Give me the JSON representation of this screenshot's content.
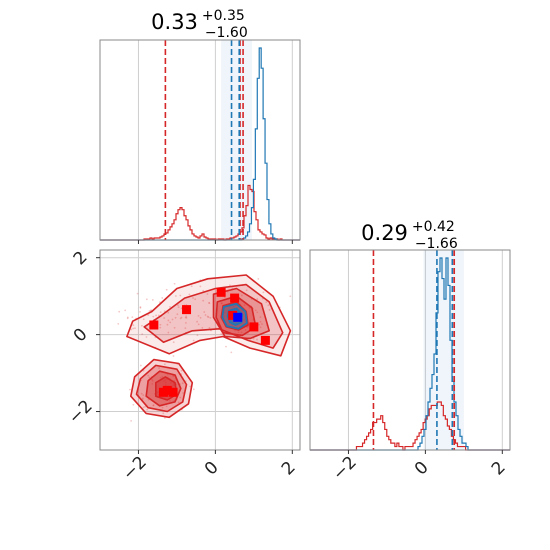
{
  "colors": {
    "red": "#d62728",
    "blue": "#1f77b4",
    "marker_red": "#ff0000",
    "marker_blue": "#0000ff",
    "grid": "#cfcfcf",
    "frame": "#8a8a8a"
  },
  "panels": {
    "top": {
      "title": {
        "value": "0.33",
        "plus": "+0.35",
        "minus": "−1.60"
      }
    },
    "right": {
      "title": {
        "value": "0.29",
        "plus": "+0.42",
        "minus": "−1.66"
      }
    }
  },
  "chart_data": {
    "type": "corner",
    "parameters": [
      "p1",
      "p2"
    ],
    "range": [
      -3,
      2.2
    ],
    "ticks": [
      -2,
      0,
      2
    ],
    "tick_labels": [
      "−2",
      "0",
      "2"
    ],
    "grid": true,
    "marginals": {
      "p1": {
        "summary": {
          "median": 0.33,
          "plus": 0.35,
          "minus": 1.6
        },
        "red_hist": [
          0,
          0,
          0,
          0,
          0,
          0,
          0,
          0,
          0,
          0,
          0,
          0,
          0,
          0,
          0,
          0,
          0,
          0,
          0,
          0,
          0,
          0,
          0.5,
          0.5,
          0.5,
          1,
          0.5,
          1,
          1,
          1,
          1.5,
          2,
          3,
          3.5,
          5,
          6.5,
          8,
          10,
          13,
          15,
          16,
          15,
          12,
          10,
          7,
          5,
          3,
          2,
          1.5,
          1,
          2,
          3,
          1.5,
          1,
          0.5,
          0.5,
          0.5,
          0.5,
          0,
          0.5,
          0.5,
          0.5,
          0,
          0.5,
          0.5,
          1,
          1,
          1.5,
          2,
          3,
          4,
          6,
          12,
          17,
          27,
          25,
          24,
          14,
          10,
          5,
          4,
          3,
          2.5,
          1,
          0.5,
          1,
          0.5,
          0.5,
          0.5,
          0,
          0.5,
          0,
          0,
          0,
          0,
          0,
          0,
          0,
          0,
          0
        ],
        "blue_hist": [
          0,
          0,
          0,
          0,
          0,
          0,
          0,
          0,
          0,
          0,
          0,
          0,
          0,
          0,
          0,
          0,
          0,
          0,
          0,
          0,
          0,
          0,
          0,
          0,
          0,
          0,
          0,
          0,
          0,
          0,
          0,
          0,
          0,
          0,
          0,
          0,
          0,
          0,
          0,
          0,
          0,
          0,
          0,
          0,
          0,
          0,
          0,
          0,
          0,
          0,
          0,
          0,
          0,
          0,
          0,
          0,
          0,
          0,
          0,
          0,
          0,
          0,
          0,
          0,
          0,
          0,
          0,
          0,
          0,
          0,
          0,
          0,
          0,
          0.5,
          1,
          2,
          4,
          8,
          16,
          30,
          55,
          80,
          95,
          85,
          60,
          38,
          20,
          8,
          3,
          1,
          0.5,
          0,
          0,
          0,
          0,
          0,
          0,
          0,
          0,
          0,
          0,
          0,
          0
        ],
        "red_lines": [
          -1.3,
          0.64,
          0.72
        ],
        "blue_lines": [
          0.42,
          0.62
        ],
        "blue_shade": [
          0.15,
          0.95
        ]
      },
      "p2": {
        "summary": {
          "median": 0.29,
          "plus": 0.42,
          "minus": 1.66
        },
        "red_hist": [
          0,
          0,
          0,
          0,
          0,
          0,
          0,
          0,
          0,
          0,
          0,
          0,
          0,
          0,
          0,
          0,
          0,
          0,
          0,
          0,
          0,
          0,
          0,
          0.5,
          0.5,
          0.5,
          1,
          1.5,
          2,
          2.5,
          3,
          4,
          4,
          4.5,
          4.5,
          5,
          4,
          3,
          2,
          1.5,
          1,
          1,
          0.5,
          1,
          0.5,
          0.5,
          0,
          0.5,
          0.5,
          0.5,
          0.5,
          1,
          1.5,
          2,
          2.5,
          3,
          4,
          4.5,
          5,
          6,
          6.5,
          6.5,
          6.5,
          7,
          7,
          6.5,
          5,
          4.5,
          3.5,
          3,
          2,
          1.5,
          1,
          0.5,
          0.5,
          0.5,
          0.5,
          0,
          0,
          0,
          0,
          0,
          0,
          0,
          0,
          0,
          0,
          0,
          0,
          0,
          0,
          0,
          0,
          0,
          0,
          0,
          0,
          0,
          0
        ],
        "blue_hist": [
          0,
          0,
          0,
          0,
          0,
          0,
          0,
          0,
          0,
          0,
          0,
          0,
          0,
          0,
          0,
          0,
          0,
          0,
          0,
          0,
          0,
          0,
          0,
          0,
          0,
          0,
          0,
          0,
          0,
          0,
          0,
          0,
          0,
          0,
          0,
          0,
          0,
          0,
          0,
          0,
          0,
          0,
          0,
          0,
          0,
          0,
          0,
          0,
          0,
          0,
          0,
          0,
          0,
          0,
          0.5,
          1,
          2,
          3,
          5,
          7,
          9,
          11,
          14,
          20,
          26,
          28,
          25,
          22,
          28,
          24,
          16,
          10,
          7,
          5,
          3,
          2,
          1,
          1,
          0.5,
          0,
          0,
          0,
          0,
          0,
          0,
          0,
          0,
          0,
          0,
          0,
          0,
          0,
          0,
          0,
          0,
          0,
          0,
          0,
          0,
          0
        ],
        "red_lines": [
          -1.35,
          0.7,
          0.75
        ],
        "blue_lines": [
          0.3,
          0.7
        ],
        "blue_shade": [
          -0.05,
          1.0
        ]
      }
    },
    "joint": {
      "red_markers": [
        [
          -1.6,
          0.25
        ],
        [
          -0.75,
          0.65
        ],
        [
          0.15,
          1.1
        ],
        [
          0.5,
          0.95
        ],
        [
          0.45,
          0.5
        ],
        [
          1.0,
          0.2
        ],
        [
          1.3,
          -0.15
        ],
        [
          -1.25,
          -1.45
        ],
        [
          -1.1,
          -1.5
        ],
        [
          -1.35,
          -1.5
        ]
      ],
      "blue_markers": [
        [
          0.58,
          0.45
        ]
      ],
      "red_contours": [
        [
          [
            -1.65,
            0.6
          ],
          [
            -1.0,
            1.2
          ],
          [
            -0.2,
            1.45
          ],
          [
            0.8,
            1.55
          ],
          [
            1.5,
            1.0
          ],
          [
            1.95,
            0.1
          ],
          [
            1.7,
            -0.55
          ],
          [
            0.9,
            -0.35
          ],
          [
            0.2,
            -0.05
          ],
          [
            -0.4,
            -0.15
          ],
          [
            -1.2,
            -0.5
          ],
          [
            -2.3,
            -0.05
          ],
          [
            -2.15,
            0.35
          ]
        ],
        [
          [
            -1.4,
            0.5
          ],
          [
            -0.8,
            0.95
          ],
          [
            0.0,
            1.2
          ],
          [
            0.8,
            1.3
          ],
          [
            1.4,
            0.85
          ],
          [
            1.75,
            0.05
          ],
          [
            1.5,
            -0.35
          ],
          [
            0.85,
            -0.15
          ],
          [
            0.1,
            0.15
          ],
          [
            -0.6,
            0.1
          ],
          [
            -1.35,
            -0.2
          ],
          [
            -1.85,
            0.2
          ]
        ],
        [
          [
            -0.05,
            1.05
          ],
          [
            0.55,
            1.2
          ],
          [
            1.2,
            0.8
          ],
          [
            1.4,
            0.1
          ],
          [
            0.9,
            -0.1
          ],
          [
            0.25,
            -0.05
          ],
          [
            -0.05,
            0.45
          ]
        ],
        [
          [
            0.05,
            0.85
          ],
          [
            0.55,
            1.0
          ],
          [
            0.95,
            0.7
          ],
          [
            1.05,
            0.2
          ],
          [
            0.7,
            -0.02
          ],
          [
            0.2,
            0.05
          ],
          [
            0.02,
            0.45
          ]
        ],
        [
          [
            0.2,
            0.75
          ],
          [
            0.55,
            0.85
          ],
          [
            0.8,
            0.6
          ],
          [
            0.85,
            0.25
          ],
          [
            0.6,
            0.12
          ],
          [
            0.28,
            0.2
          ],
          [
            0.15,
            0.45
          ]
        ],
        [
          [
            -2.1,
            -1.1
          ],
          [
            -1.6,
            -0.65
          ],
          [
            -0.95,
            -0.75
          ],
          [
            -0.6,
            -1.25
          ],
          [
            -0.7,
            -1.8
          ],
          [
            -1.2,
            -2.15
          ],
          [
            -1.8,
            -2.05
          ],
          [
            -2.2,
            -1.6
          ]
        ],
        [
          [
            -1.95,
            -1.15
          ],
          [
            -1.55,
            -0.8
          ],
          [
            -1.0,
            -0.9
          ],
          [
            -0.75,
            -1.3
          ],
          [
            -0.85,
            -1.75
          ],
          [
            -1.25,
            -2.0
          ],
          [
            -1.75,
            -1.9
          ],
          [
            -2.05,
            -1.55
          ]
        ],
        [
          [
            -1.75,
            -1.2
          ],
          [
            -1.45,
            -0.95
          ],
          [
            -1.05,
            -1.05
          ],
          [
            -0.9,
            -1.4
          ],
          [
            -1.05,
            -1.75
          ],
          [
            -1.45,
            -1.85
          ],
          [
            -1.8,
            -1.6
          ]
        ],
        [
          [
            -1.55,
            -1.25
          ],
          [
            -1.3,
            -1.1
          ],
          [
            -1.05,
            -1.25
          ],
          [
            -1.0,
            -1.55
          ],
          [
            -1.25,
            -1.7
          ],
          [
            -1.55,
            -1.6
          ]
        ]
      ],
      "blue_contours": [
        [
          [
            0.22,
            0.72
          ],
          [
            0.55,
            0.8
          ],
          [
            0.78,
            0.6
          ],
          [
            0.82,
            0.3
          ],
          [
            0.6,
            0.15
          ],
          [
            0.3,
            0.22
          ],
          [
            0.18,
            0.45
          ]
        ],
        [
          [
            0.35,
            0.62
          ],
          [
            0.55,
            0.68
          ],
          [
            0.7,
            0.52
          ],
          [
            0.68,
            0.32
          ],
          [
            0.52,
            0.25
          ],
          [
            0.38,
            0.32
          ],
          [
            0.32,
            0.48
          ]
        ]
      ]
    }
  }
}
